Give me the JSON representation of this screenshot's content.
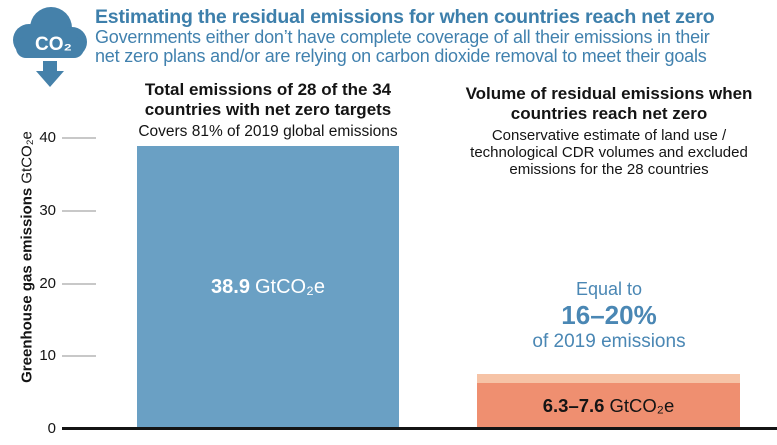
{
  "colors": {
    "title_blue": "#3d7fab",
    "subtitle_blue": "#4181ae",
    "annotation_blue": "#4a87b4",
    "icon_blue": "#4581aa",
    "bar_blue": "#6aa0c4",
    "bar_orange": "#ef8f70",
    "bar_orange_light": "#f6c3a6",
    "tick_gray": "#c8c8c8",
    "axis_black": "#141414"
  },
  "header": {
    "icon_label": "CO₂",
    "title": "Estimating the residual emissions for when countries reach net zero",
    "subtitle_lines": [
      "Governments either don’t have complete coverage of all their emissions in their",
      "net zero plans and/or are relying on carbon dioxide removal to meet their goals"
    ]
  },
  "y_axis": {
    "label_bold": "Greenhouse gas emissions",
    "label_unit": "GtCO₂e"
  },
  "chart_data": {
    "type": "bar",
    "title": "Estimating the residual emissions for when countries reach net zero",
    "subtitle": "Governments either don’t have complete coverage of all their emissions in their net zero plans and/or are relying on carbon dioxide removal to meet their goals",
    "ylabel": "Greenhouse gas emissions GtCO₂e",
    "ylim": [
      0,
      40
    ],
    "yticks": [
      0,
      10,
      20,
      30,
      40
    ],
    "grid": false,
    "legend": "none",
    "bars": [
      {
        "category": "Total emissions of 28 of the 34 countries with net zero targets",
        "note": "Covers 81% of 2019 global emissions",
        "value": 38.9,
        "label": "38.9 GtCO₂e",
        "value_bold": "38.9",
        "unit": "GtCO₂e",
        "color": "#6aa0c4"
      },
      {
        "category": "Volume of residual emissions when countries reach net zero",
        "note": "Conservative estimate of land use / technological CDR volumes and excluded emissions for the 28 countries",
        "value_low": 6.3,
        "value_high": 7.6,
        "label": "6.3–7.6 GtCO₂e",
        "value_bold": "6.3–7.6",
        "unit": "GtCO₂e",
        "color": "#ef8f70",
        "range_color": "#f6c3a6",
        "annotation": "Equal to 16–20% of 2019 emissions"
      }
    ],
    "annotation": {
      "line1": "Equal to",
      "line2": "16–20%",
      "line3": "of 2019 emissions"
    }
  }
}
